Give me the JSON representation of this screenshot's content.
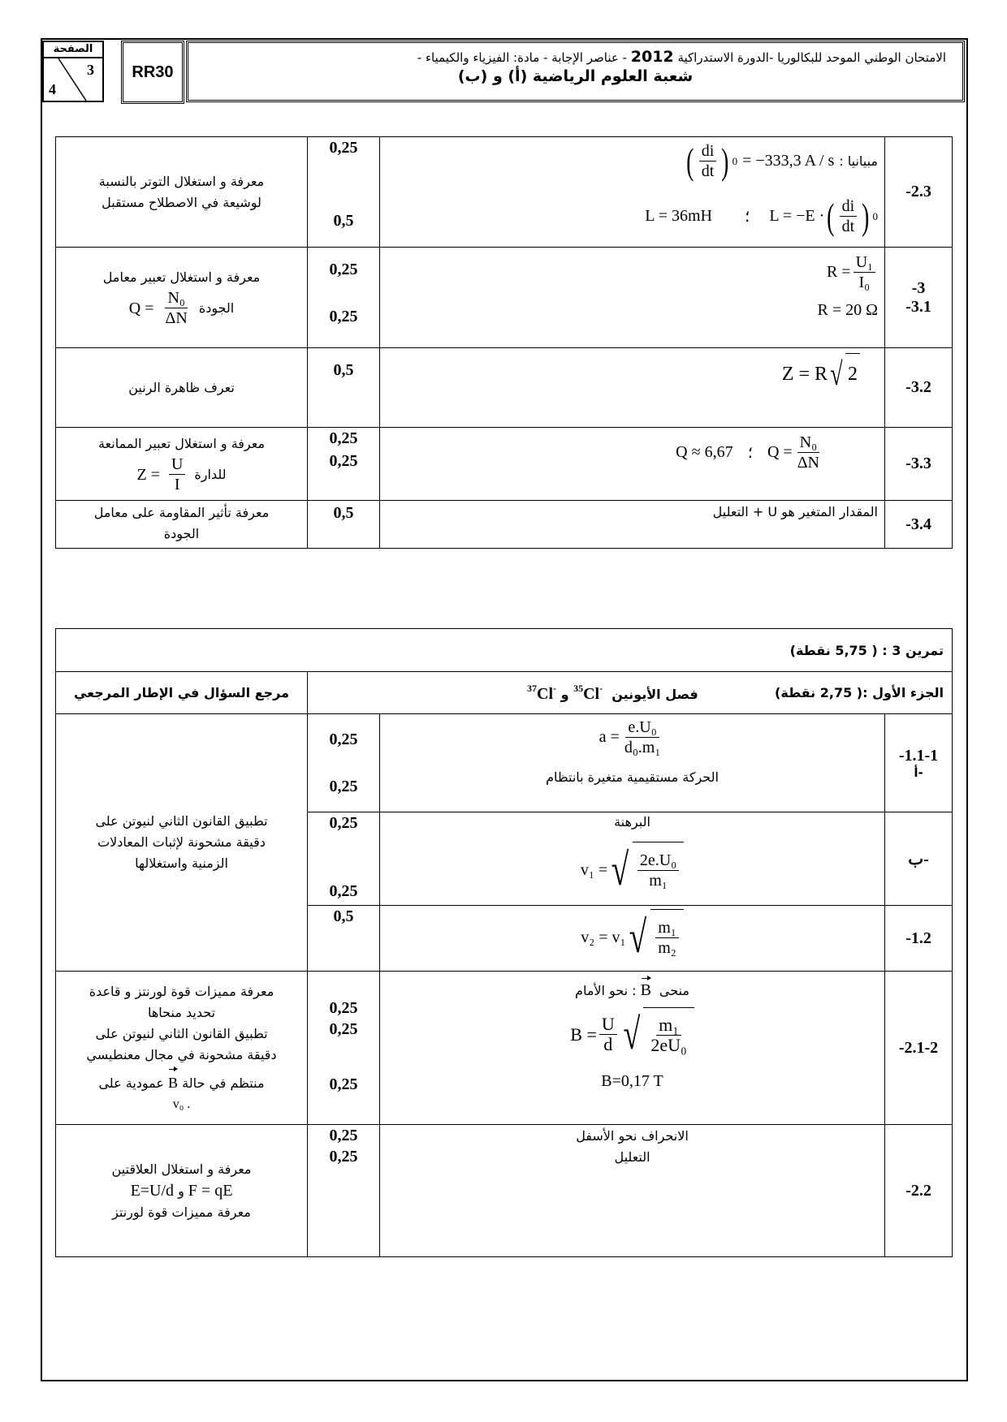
{
  "header": {
    "page_label": "الصفحة",
    "page_current": "3",
    "page_total": "4",
    "code": "RR30",
    "title_line1_a": "الامتحان الوطني الموحد للبكالوريا -الدورة الاستدراكية",
    "title_year": "2012",
    "title_line1_b": "- عناصر الإجابة - مادة: الفيزياء والكيمياء -",
    "title_line2": "شعبة العلوم الرياضية (أ) و (ب)"
  },
  "table1": {
    "rows": [
      {
        "q": "-2.3",
        "points": [
          "0,25",
          "0,5"
        ],
        "ans": {
          "graph_label": "مبيانيا :",
          "didt_num": "di",
          "didt_den": "dt",
          "didt_sub": "0",
          "didt_val": "= −333,3 A / s",
          "L_result": "L = 36mH",
          "sep": "؛",
          "L_formula_lhs": "L = −E ·"
        },
        "ref": [
          "معرفة و استغلال التوتر بالنسبة",
          "لوشيعة في الاصطلاح مستقبل"
        ]
      },
      {
        "q": [
          "-3",
          "-3.1"
        ],
        "points": [
          "0,25",
          "0,25"
        ],
        "ans": {
          "lhs": "R =",
          "num": "U₁",
          "den": "I₀",
          "result": "R = 20 Ω"
        },
        "ref": [
          "معرفة و استغلال تعبير معامل",
          "الجودة"
        ],
        "ref_formula": {
          "lhs": "Q =",
          "num": "N₀",
          "den": "ΔN"
        }
      },
      {
        "q": "-3.2",
        "points": [
          "0,5"
        ],
        "ans": {
          "lhs": "Z = R",
          "rad": "2"
        },
        "ref": [
          "تعرف ظاهرة الرنين"
        ]
      },
      {
        "q": "-3.3",
        "points": [
          "0,25",
          "0,25"
        ],
        "ans": {
          "result": "Q ≈ 6,67",
          "sep": "؛",
          "lhs": "Q =",
          "num": "N₀",
          "den": "ΔN"
        },
        "ref": [
          "معرفة و استغلال تعبير الممانعة",
          "للدارة"
        ],
        "ref_formula": {
          "lhs": "Z =",
          "num": "U",
          "den": "I"
        }
      },
      {
        "q": "-3.4",
        "points": [
          "0,5"
        ],
        "ans": {
          "text": "المقدار المتغير هو U + التعليل"
        },
        "ref": [
          "معرفة تأثير المقاومة على معامل",
          "الجودة"
        ]
      }
    ]
  },
  "table2": {
    "title": "تمرين 3 : ( 5,75 نقطة)",
    "ref_header": "مرجع السؤال في الإطار المرجعي",
    "part_label": "الجزء الأول :( 2,75 نقطة)",
    "part_topic": "فصل الأيونين",
    "ion1_mass": "35",
    "ion2_mass": "37",
    "ion_symbol": "Cl",
    "ion_charge": "-",
    "and": "و",
    "rows": [
      {
        "q": [
          "-1.1-1",
          "أ-"
        ],
        "points": [
          "0,25",
          "0,25"
        ],
        "ans": {
          "lhs": "a =",
          "num": "e.U₀",
          "den": "d₀.m₁",
          "text": "الحركة مستقيمية متغيرة بانتظام"
        }
      },
      {
        "q": "ب-",
        "points": [
          "0,25",
          "0,25"
        ],
        "ans": {
          "text": "البرهنة",
          "lhs": "v₁ =",
          "num": "2e.U₀",
          "den": "m₁"
        }
      },
      {
        "q": "-1.2",
        "points": [
          "0,5"
        ],
        "ans": {
          "lhs": "v₂ = v₁",
          "num": "m₁",
          "den": "m₂"
        }
      },
      {
        "q": "-2.1-2",
        "points": [
          "0,25",
          "0,25",
          "0,25"
        ],
        "ans": {
          "dir_label": "منحى",
          "vecB": "B",
          "dir_text": ": نحو الأمام",
          "lhs": "B =",
          "num1": "U",
          "den1": "d",
          "num2": "m₁",
          "den2": "2eU₀",
          "result": "B=0,17 T"
        }
      },
      {
        "q": "-2.2",
        "points": [
          "0,25",
          "0,25"
        ],
        "ans": {
          "line1": "الانحراف نحو الأسفل",
          "line2": "التعليل"
        }
      }
    ],
    "ref_newton": [
      "تطبيق القانون الثاني لنيوتن على",
      "دقيقة مشحونة لإثبات المعادلات",
      "الزمنية واستغلالها"
    ],
    "ref_lorentz": [
      "معرفة مميزات قوة لورنتز و قاعدة",
      "تحديد منحاها",
      "تطبيق القانون الثاني لنيوتن على",
      "دقيقة مشحونة في مجال معنطيسي",
      "منتظم في حالة",
      "عمودية على",
      ". v₀"
    ],
    "ref_lorentz_vec": "B",
    "ref_fields": {
      "line1": "معرفة و استغلال العلاقتين",
      "rel1": "E=U/d",
      "and": "و",
      "rel2": "F = qE",
      "line3": "معرفة مميزات قوة لورنتز"
    }
  }
}
